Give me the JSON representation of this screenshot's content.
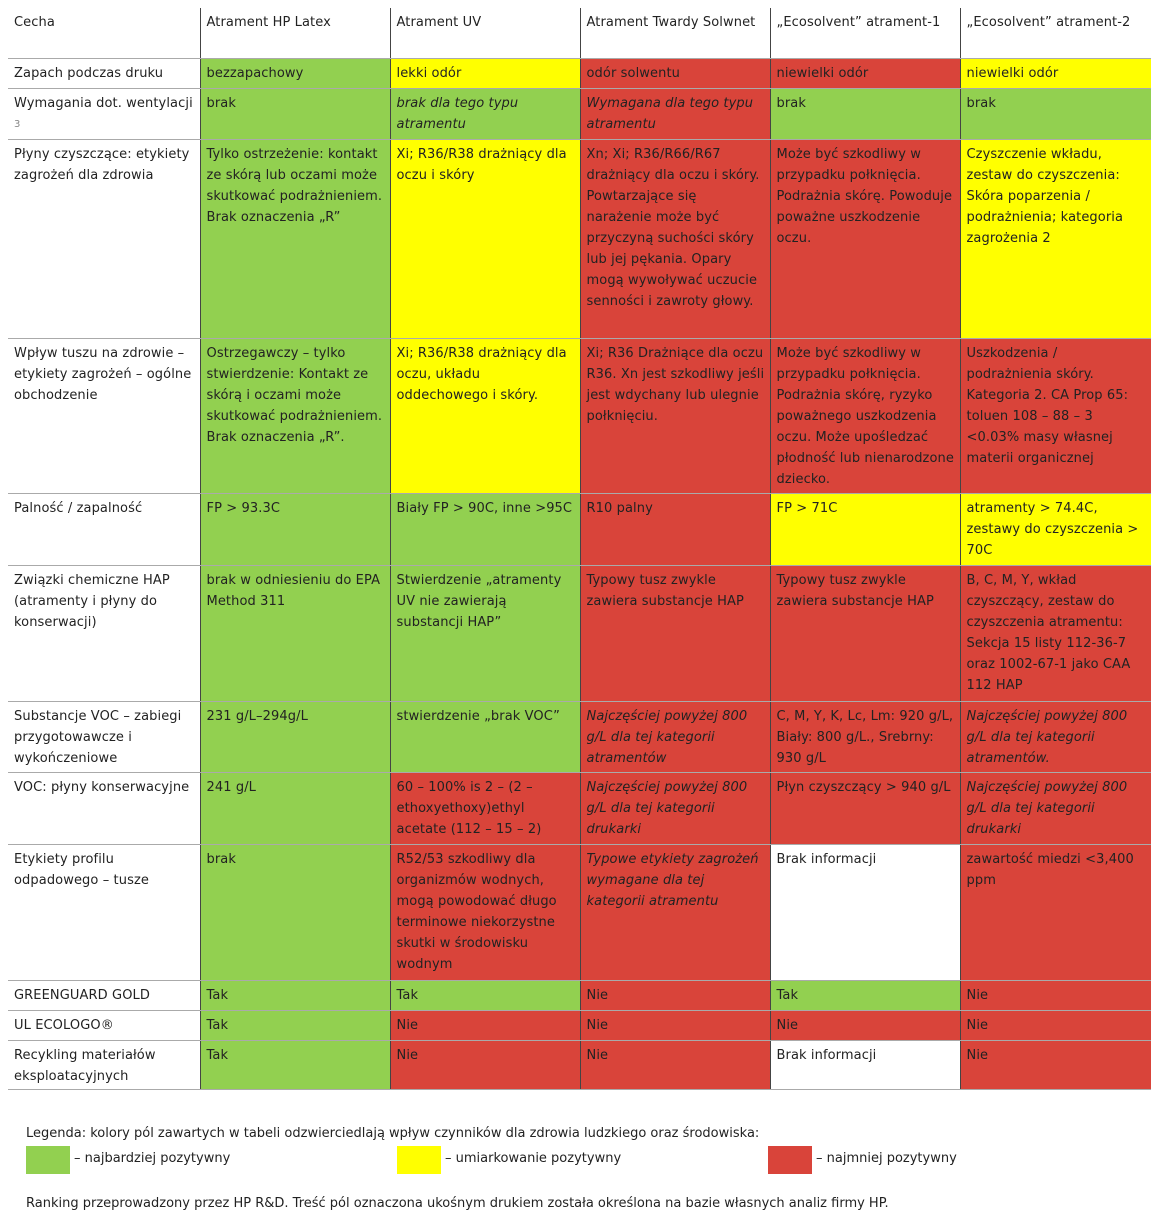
{
  "table": {
    "header": [
      "Cecha",
      "Atrament HP Latex",
      "Atrament UV",
      "Atrament Twardy Solwnet",
      "„Ecosolvent” atrament-1",
      "„Ecosolvent” atrament-2"
    ],
    "rows": [
      {
        "label": "Zapach podczas druku",
        "cells": [
          {
            "text": "bezzapachowy",
            "color": "#92d050"
          },
          {
            "text": "lekki odór",
            "color": "#ffff00"
          },
          {
            "text": "odór solwentu",
            "color": "#d9443a"
          },
          {
            "text": "niewielki odór",
            "color": "#d9443a"
          },
          {
            "text": "niewielki odór",
            "color": "#ffff00"
          }
        ]
      },
      {
        "label": "Wymagania dot. wentylacji",
        "note": "3",
        "cells": [
          {
            "text": "brak",
            "color": "#92d050"
          },
          {
            "text": "brak dla tego typu atramentu",
            "color": "#92d050",
            "italic": true
          },
          {
            "text": "Wymagana dla tego typu atramentu",
            "color": "#d9443a",
            "italic": true
          },
          {
            "text": "brak",
            "color": "#92d050"
          },
          {
            "text": "brak",
            "color": "#92d050"
          }
        ]
      },
      {
        "label": "Płyny czyszczące: etykiety zagrożeń dla zdrowia",
        "cells": [
          {
            "text": "Tylko ostrzeżenie: kontakt ze skórą lub oczami może skutkować podrażnieniem. Brak oznaczenia „R”",
            "color": "#92d050"
          },
          {
            "text": "Xi; R36/R38 drażniący dla oczu i skóry",
            "color": "#ffff00"
          },
          {
            "text": "Xn; Xi; R36/R66/R67 drażniący dla oczu i skóry. Powtarzające się narażenie może być przyczyną suchości skóry lub jej pękania. Opary mogą wywoływać uczucie senności i zawroty głowy.",
            "color": "#d9443a"
          },
          {
            "text": "Może być szkodliwy w przypadku połknięcia. Podrażnia skórę. Powoduje poważne uszkodzenie oczu.",
            "color": "#d9443a"
          },
          {
            "text": "Czyszczenie wkładu, zestaw do czyszczenia: Skóra poparzenia / podrażnienia; kategoria zagrożenia 2",
            "color": "#ffff00"
          }
        ]
      },
      {
        "label": "Wpływ tuszu na zdrowie – etykiety zagrożeń – ogólne obchodzenie",
        "cells": [
          {
            "text": "Ostrzegawczy – tylko stwierdzenie: Kontakt ze skórą i oczami może skutkować podrażnieniem. Brak oznaczenia „R”.",
            "color": "#92d050"
          },
          {
            "text": "Xi; R36/R38 drażniący dla oczu, układu oddechowego i skóry.",
            "color": "#ffff00"
          },
          {
            "text": "Xi; R36 Drażniące dla oczu R36. Xn jest szkodliwy jeśli jest wdychany lub ulegnie połknięciu.",
            "color": "#d9443a"
          },
          {
            "text": "Może być szkodliwy w przypadku połknięcia. Podrażnia skórę, ryzyko poważnego uszkodzenia oczu. Może upośledzać płodność lub nienarodzone dziecko.",
            "color": "#d9443a"
          },
          {
            "text": "Uszkodzenia / podrażnienia skóry. Kategoria 2. CA Prop 65: toluen 108 – 88 – 3 <0.03% masy własnej materii organicznej",
            "color": "#d9443a"
          }
        ]
      },
      {
        "label": "Palność / zapalność",
        "cells": [
          {
            "text": "FP > 93.3C",
            "color": "#92d050"
          },
          {
            "text": "Biały FP > 90C, inne >95C",
            "color": "#92d050"
          },
          {
            "text": "R10 palny",
            "color": "#d9443a"
          },
          {
            "text": "FP > 71C",
            "color": "#ffff00"
          },
          {
            "text": "atramenty > 74.4C, zestawy do czyszczenia > 70C",
            "color": "#ffff00"
          }
        ]
      },
      {
        "label": "Związki chemiczne HAP (atramenty i płyny do konserwacji)",
        "cells": [
          {
            "text": "brak w odniesieniu do EPA Method 311",
            "color": "#92d050"
          },
          {
            "text": "Stwierdzenie „atramenty UV nie zawierają substancji HAP”",
            "color": "#92d050"
          },
          {
            "text": "Typowy tusz zwykle zawiera substancje HAP",
            "color": "#d9443a"
          },
          {
            "text": "Typowy tusz zwykle zawiera substancje HAP",
            "color": "#d9443a"
          },
          {
            "text": "B, C, M, Y, wkład czyszczący, zestaw do czyszczenia atramentu: Sekcja 15 listy 112-36-7 oraz 1002-67-1 jako CAA 112 HAP",
            "color": "#d9443a"
          }
        ]
      },
      {
        "label": "Substancje VOC – zabiegi przygotowawcze i wykończeniowe",
        "cells": [
          {
            "text": "231 g/L–294g/L",
            "color": "#92d050"
          },
          {
            "text": "stwierdzenie „brak VOC”",
            "color": "#92d050"
          },
          {
            "text": "Najczęściej powyżej 800 g/L dla tej kategorii atramentów",
            "color": "#d9443a",
            "italic": true
          },
          {
            "text": "C, M, Y, K, Lc, Lm: 920 g/L, Biały: 800 g/L., Srebrny: 930 g/L",
            "color": "#d9443a"
          },
          {
            "text": "Najczęściej powyżej 800 g/L dla tej kategorii atramentów.",
            "color": "#d9443a",
            "italic": true
          }
        ]
      },
      {
        "label": "VOC: płyny konserwacyjne",
        "cells": [
          {
            "text": "241 g/L",
            "color": "#92d050"
          },
          {
            "text": "60 – 100% is 2 – (2 – ethoxyethoxy)ethyl acetate (112 – 15 – 2)",
            "color": "#d9443a"
          },
          {
            "text": "Najczęściej powyżej 800 g/L dla tej kategorii drukarki",
            "color": "#d9443a",
            "italic": true
          },
          {
            "text": "Płyn czyszczący > 940 g/L",
            "color": "#d9443a"
          },
          {
            "text": "Najczęściej powyżej 800 g/L dla tej kategorii drukarki",
            "color": "#d9443a",
            "italic": true
          }
        ]
      },
      {
        "label": "Etykiety profilu odpadowego – tusze",
        "cells": [
          {
            "text": "brak",
            "color": "#92d050"
          },
          {
            "text": "R52/53 szkodliwy dla organizmów wodnych, mogą powodować długo terminowe niekorzystne skutki w środowisku wodnym",
            "color": "#d9443a"
          },
          {
            "text": "Typowe etykiety zagrożeń wymagane dla tej kategorii atramentu",
            "color": "#d9443a",
            "italic": true
          },
          {
            "text": "Brak informacji",
            "color": "#ffffff"
          },
          {
            "text": "zawartość miedzi <3,400 ppm",
            "color": "#d9443a"
          }
        ]
      },
      {
        "label": "GREENGUARD GOLD",
        "cells": [
          {
            "text": "Tak",
            "color": "#92d050"
          },
          {
            "text": "Tak",
            "color": "#92d050"
          },
          {
            "text": "Nie",
            "color": "#d9443a"
          },
          {
            "text": "Tak",
            "color": "#92d050"
          },
          {
            "text": "Nie",
            "color": "#d9443a"
          }
        ]
      },
      {
        "label": "UL ECOLOGO®",
        "cells": [
          {
            "text": "Tak",
            "color": "#92d050"
          },
          {
            "text": "Nie",
            "color": "#d9443a"
          },
          {
            "text": "Nie",
            "color": "#d9443a"
          },
          {
            "text": "Nie",
            "color": "#d9443a"
          },
          {
            "text": "Nie",
            "color": "#d9443a"
          }
        ]
      },
      {
        "label": "Recykling materiałów eksploatacyjnych",
        "cells": [
          {
            "text": "Tak",
            "color": "#92d050"
          },
          {
            "text": "Nie",
            "color": "#d9443a"
          },
          {
            "text": "Nie",
            "color": "#d9443a"
          },
          {
            "text": "Brak informacji",
            "color": "#ffffff"
          },
          {
            "text": "Nie",
            "color": "#d9443a"
          }
        ]
      }
    ]
  },
  "legend": {
    "title": "Legenda: kolory pól zawartych w tabeli odzwierciedlają wpływ czynników dla zdrowia ludzkiego oraz środowiska:",
    "items": [
      {
        "label": "– najbardziej pozytywny",
        "color": "#92d050"
      },
      {
        "label": "– umiarkowanie pozytywny",
        "color": "#ffff00"
      },
      {
        "label": "– najmniej pozytywny",
        "color": "#d9443a"
      }
    ]
  },
  "footer": "Ranking przeprowadzony przez HP R&D. Treść pól oznaczona ukośnym drukiem została określona na bazie własnych analiz firmy HP."
}
